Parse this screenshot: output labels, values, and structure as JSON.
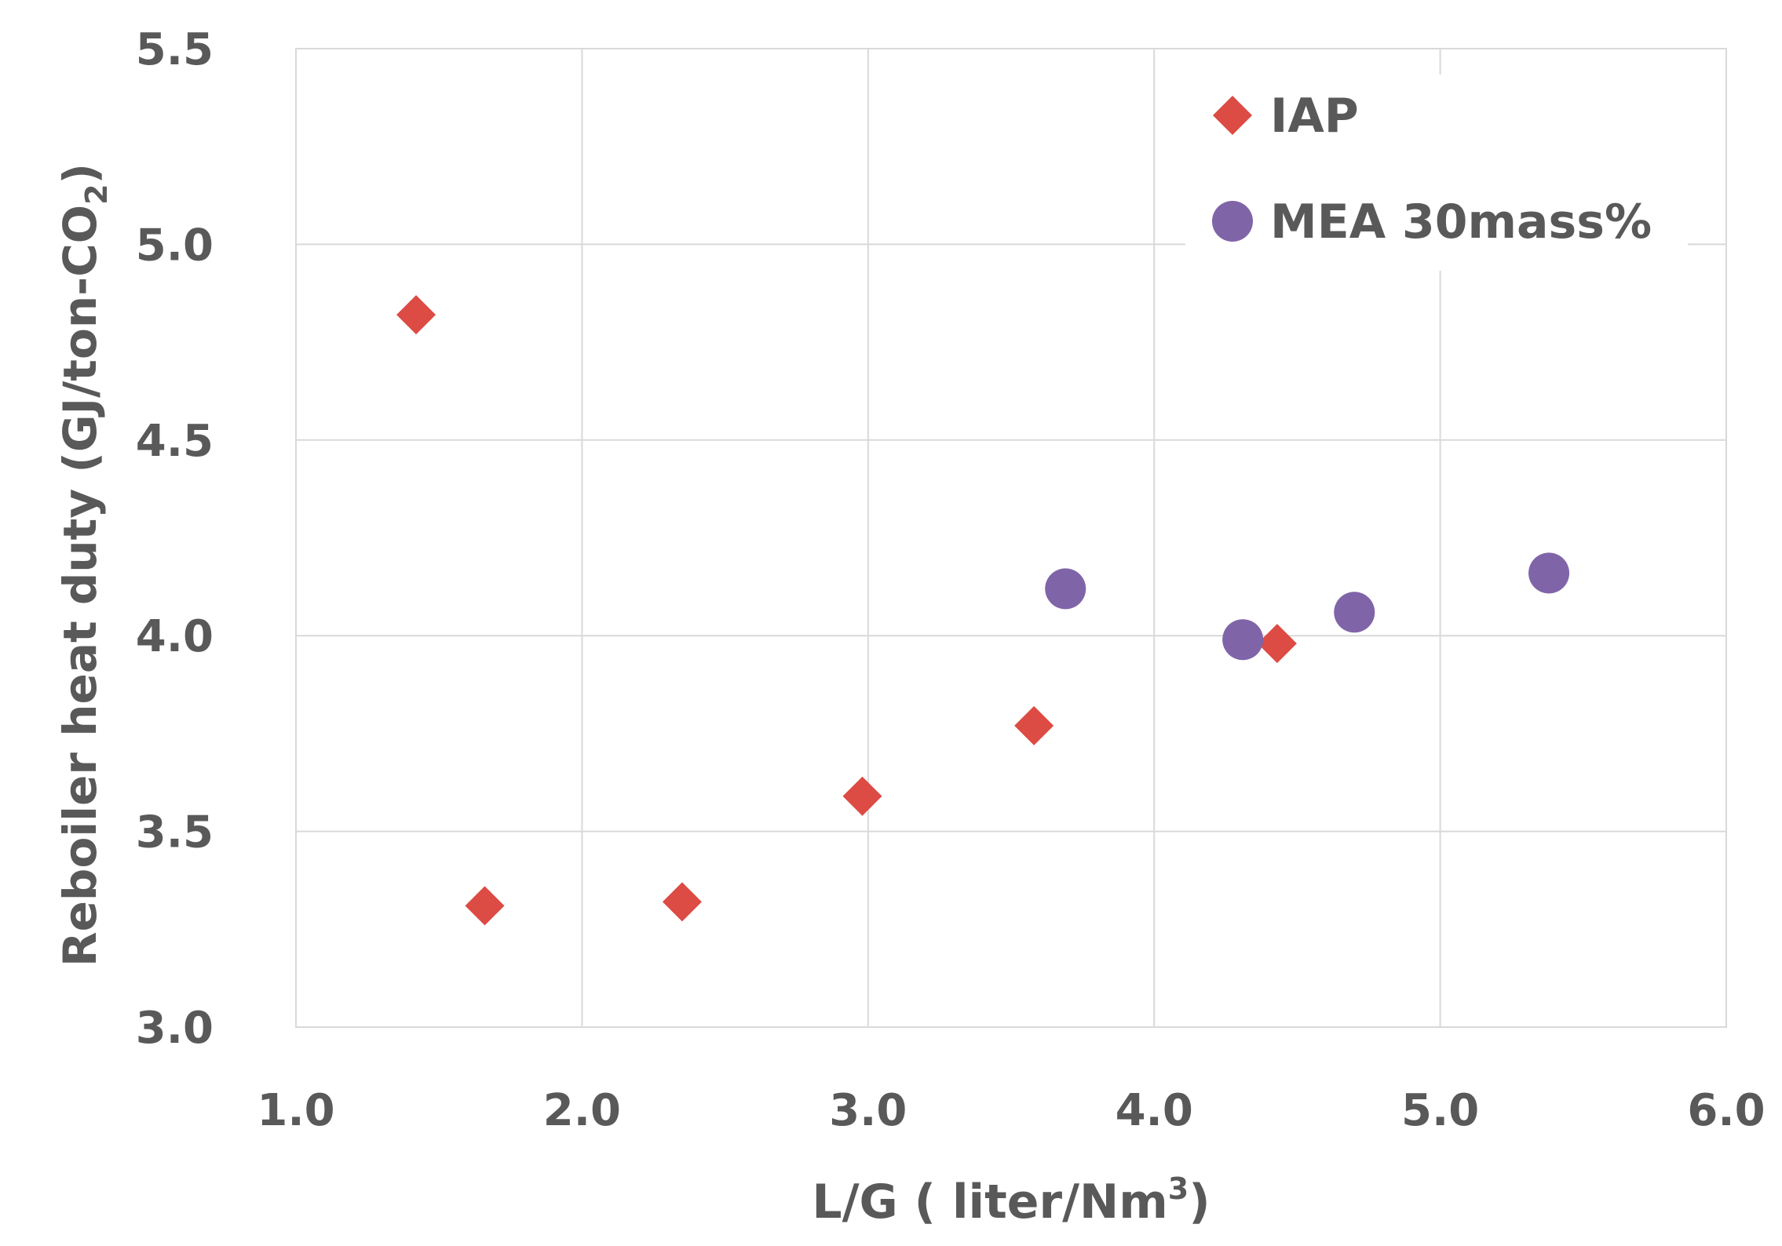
{
  "chart_data": {
    "type": "scatter",
    "title": "",
    "xlabel": "L/G ( liter/Nm",
    "xlabel_sup": "3",
    "xlabel_end": ")",
    "ylabel": "Reboiler heat duty (GJ/ton-CO",
    "ylabel_sub": "2",
    "ylabel_end": ")",
    "xlim": [
      1.0,
      6.0
    ],
    "ylim": [
      3.0,
      5.5
    ],
    "x_ticks": [
      1.0,
      2.0,
      3.0,
      4.0,
      5.0,
      6.0
    ],
    "x_tick_labels": [
      "1.0",
      "2.0",
      "3.0",
      "4.0",
      "5.0",
      "6.0"
    ],
    "y_ticks": [
      3.0,
      3.5,
      4.0,
      4.5,
      5.0,
      5.5
    ],
    "y_tick_labels": [
      "3.0",
      "3.5",
      "4.0",
      "4.5",
      "5.0",
      "5.5"
    ],
    "grid": true,
    "legend_position": "top-right",
    "series": [
      {
        "name": "IAP",
        "marker": "diamond",
        "color": "#dc4b44",
        "points": [
          {
            "x": 1.42,
            "y": 4.82
          },
          {
            "x": 1.66,
            "y": 3.31
          },
          {
            "x": 2.35,
            "y": 3.32
          },
          {
            "x": 2.98,
            "y": 3.59
          },
          {
            "x": 3.58,
            "y": 3.77
          },
          {
            "x": 4.43,
            "y": 3.98
          }
        ]
      },
      {
        "name": "MEA 30mass%",
        "marker": "circle",
        "color": "#8064a8",
        "points": [
          {
            "x": 3.69,
            "y": 4.12
          },
          {
            "x": 4.31,
            "y": 3.99
          },
          {
            "x": 4.7,
            "y": 4.06
          },
          {
            "x": 5.38,
            "y": 4.16
          }
        ]
      }
    ]
  }
}
